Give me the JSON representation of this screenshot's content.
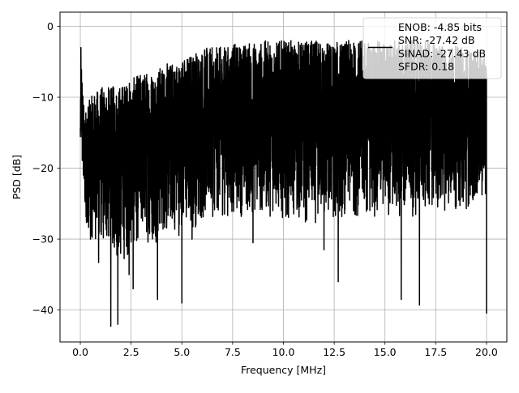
{
  "chart_data": {
    "type": "line",
    "title": "",
    "xlabel": "Frequency [MHz]",
    "ylabel": "PSD [dB]",
    "xlim": [
      -1.0,
      21.0
    ],
    "ylim": [
      -44.5,
      2.0
    ],
    "xticks": [
      0.0,
      2.5,
      5.0,
      7.5,
      10.0,
      12.5,
      15.0,
      17.5,
      20.0
    ],
    "xtick_labels": [
      "0.0",
      "2.5",
      "5.0",
      "7.5",
      "10.0",
      "12.5",
      "15.0",
      "17.5",
      "20.0"
    ],
    "yticks": [
      0,
      -10,
      -20,
      -30,
      -40
    ],
    "ytick_labels": [
      "0",
      "−10",
      "−20",
      "−30",
      "−40"
    ],
    "grid": true,
    "legend_position": "top-right",
    "series": [
      {
        "name": "ENOB: -4.85 bits\nSNR: -27.42 dB\nSINAD: -27.43 dB\nSFDR: 0.18",
        "color": "#000000",
        "envelope": {
          "x": [
            0.0,
            0.05,
            0.1,
            0.2,
            0.5,
            1.0,
            1.5,
            2.0,
            2.5,
            3.0,
            3.5,
            4.0,
            4.5,
            5.0,
            5.5,
            6.0,
            6.5,
            7.0,
            7.5,
            8.0,
            9.0,
            10.0,
            11.0,
            12.0,
            12.5,
            13.0,
            14.0,
            15.0,
            16.0,
            17.0,
            18.0,
            19.0,
            20.0
          ],
          "upper": [
            -13.0,
            -3.0,
            -8.0,
            -12.0,
            -10.0,
            -8.5,
            -8.5,
            -8.0,
            -7.5,
            -6.5,
            -6.0,
            -5.5,
            -5.0,
            -4.5,
            -3.5,
            -3.0,
            -3.0,
            -2.8,
            -2.5,
            -2.3,
            -2.0,
            -2.0,
            -2.0,
            -2.0,
            -2.2,
            -2.0,
            -2.0,
            -2.0,
            -2.0,
            -2.0,
            -2.5,
            -3.0,
            -4.0
          ],
          "lower": [
            -18.0,
            -18.0,
            -22.0,
            -27.0,
            -30.0,
            -31.0,
            -32.0,
            -34.0,
            -32.0,
            -30.0,
            -31.0,
            -30.0,
            -29.0,
            -30.0,
            -29.0,
            -28.0,
            -27.0,
            -27.0,
            -27.0,
            -27.0,
            -27.0,
            -27.0,
            -28.0,
            -28.0,
            -28.0,
            -27.0,
            -27.0,
            -27.0,
            -27.0,
            -27.0,
            -26.0,
            -26.0,
            -24.0
          ]
        },
        "dips": [
          {
            "x": 0.5,
            "y": -30.0
          },
          {
            "x": 0.9,
            "y": -33.3
          },
          {
            "x": 1.5,
            "y": -42.3
          },
          {
            "x": 1.85,
            "y": -42.0
          },
          {
            "x": 2.4,
            "y": -35.0
          },
          {
            "x": 2.6,
            "y": -37.0
          },
          {
            "x": 3.8,
            "y": -38.5
          },
          {
            "x": 5.0,
            "y": -39.0
          },
          {
            "x": 5.5,
            "y": -30.0
          },
          {
            "x": 8.5,
            "y": -30.5
          },
          {
            "x": 12.0,
            "y": -31.5
          },
          {
            "x": 12.7,
            "y": -36.0
          },
          {
            "x": 15.8,
            "y": -38.5
          },
          {
            "x": 16.7,
            "y": -39.3
          },
          {
            "x": 20.0,
            "y": -40.5
          }
        ]
      }
    ]
  }
}
